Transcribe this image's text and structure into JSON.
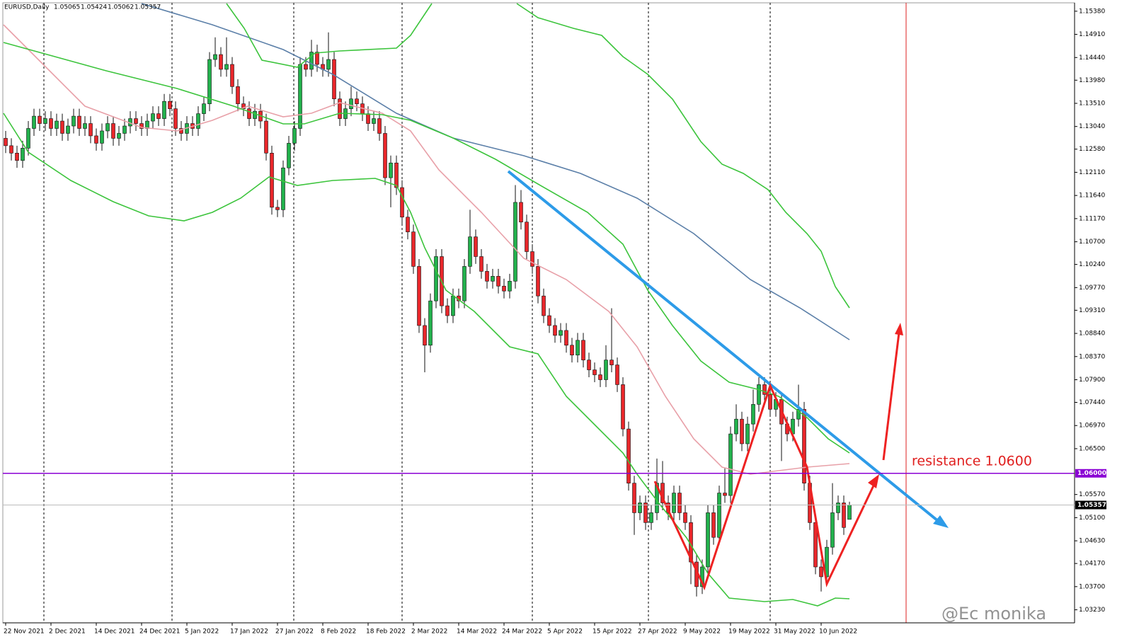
{
  "chart_data": {
    "type": "candlestick",
    "symbol": "EURUSD,Daily",
    "watermark": "@Ec monika",
    "annotation": "resistance 1.0600",
    "up_color": "#22b14c",
    "down_color": "#e8272b",
    "ylim": [
      1.02965,
      1.1555
    ],
    "yticks": [
      {
        "value": 1.1538,
        "label": "1.15380"
      },
      {
        "value": 1.1491,
        "label": "1.14910"
      },
      {
        "value": 1.1444,
        "label": "1.14440"
      },
      {
        "value": 1.1398,
        "label": "1.13980"
      },
      {
        "value": 1.1351,
        "label": "1.13510"
      },
      {
        "value": 1.1304,
        "label": "1.13040"
      },
      {
        "value": 1.1258,
        "label": "1.12580"
      },
      {
        "value": 1.1211,
        "label": "1.12110"
      },
      {
        "value": 1.1164,
        "label": "1.11640"
      },
      {
        "value": 1.1117,
        "label": "1.11170"
      },
      {
        "value": 1.107,
        "label": "1.10700"
      },
      {
        "value": 1.1024,
        "label": "1.10240"
      },
      {
        "value": 1.0977,
        "label": "1.09770"
      },
      {
        "value": 1.0931,
        "label": "1.09310"
      },
      {
        "value": 1.0884,
        "label": "1.08840"
      },
      {
        "value": 1.0837,
        "label": "1.08370"
      },
      {
        "value": 1.079,
        "label": "1.07900"
      },
      {
        "value": 1.0744,
        "label": "1.07440"
      },
      {
        "value": 1.0697,
        "label": "1.06970"
      },
      {
        "value": 1.065,
        "label": "1.06500"
      },
      {
        "value": 1.0557,
        "label": "1.05570"
      },
      {
        "value": 1.051,
        "label": "1.05100"
      },
      {
        "value": 1.0463,
        "label": "1.04630"
      },
      {
        "value": 1.0417,
        "label": "1.04170"
      },
      {
        "value": 1.037,
        "label": "1.03700"
      },
      {
        "value": 1.0323,
        "label": "1.03230"
      }
    ],
    "hline": {
      "value": 1.06,
      "label": "1.06000",
      "color": "#8a00d4"
    },
    "price_label": {
      "value": 1.05357,
      "label": "1.05357"
    },
    "categories": [
      "22 Nov 2021",
      null,
      null,
      null,
      null,
      null,
      null,
      null,
      "2 Dec 2021",
      null,
      null,
      null,
      null,
      null,
      null,
      null,
      "14 Dec 2021",
      null,
      null,
      null,
      null,
      null,
      null,
      null,
      "24 Dec 2021",
      null,
      null,
      null,
      null,
      null,
      null,
      null,
      "5 Jan 2022",
      null,
      null,
      null,
      null,
      null,
      null,
      null,
      "17 Jan 2022",
      null,
      null,
      null,
      null,
      null,
      null,
      null,
      "27 Jan 2022",
      null,
      null,
      null,
      null,
      null,
      null,
      null,
      "8 Feb 2022",
      null,
      null,
      null,
      null,
      null,
      null,
      null,
      "18 Feb 2022",
      null,
      null,
      null,
      null,
      null,
      null,
      null,
      "2 Mar 2022",
      null,
      null,
      null,
      null,
      null,
      null,
      null,
      "14 Mar 2022",
      null,
      null,
      null,
      null,
      null,
      null,
      null,
      "24 Mar 2022",
      null,
      null,
      null,
      null,
      null,
      null,
      null,
      "5 Apr 2022",
      null,
      null,
      null,
      null,
      null,
      null,
      null,
      "15 Apr 2022",
      null,
      null,
      null,
      null,
      null,
      null,
      null,
      "27 Apr 2022",
      null,
      null,
      null,
      null,
      null,
      null,
      null,
      "9 May 2022",
      null,
      null,
      null,
      null,
      null,
      null,
      null,
      "19 May 2022",
      null,
      null,
      null,
      null,
      null,
      null,
      null,
      "31 May 2022",
      null,
      null,
      null,
      null,
      null,
      null,
      null,
      "10 Jun 2022",
      null,
      null,
      null,
      null,
      null
    ],
    "ohlc": [
      [
        1.128,
        1.1295,
        1.125,
        1.1265
      ],
      [
        1.1265,
        1.128,
        1.1235,
        1.125
      ],
      [
        1.125,
        1.1265,
        1.122,
        1.1235
      ],
      [
        1.1235,
        1.1275,
        1.122,
        1.126
      ],
      [
        1.126,
        1.1315,
        1.1245,
        1.13
      ],
      [
        1.13,
        1.134,
        1.1285,
        1.1325
      ],
      [
        1.1325,
        1.134,
        1.1295,
        1.131
      ],
      [
        1.131,
        1.1335,
        1.1295,
        1.132
      ],
      [
        1.132,
        1.1335,
        1.1285,
        1.13
      ],
      [
        1.13,
        1.133,
        1.1285,
        1.1315
      ],
      [
        1.1315,
        1.133,
        1.1275,
        1.129
      ],
      [
        1.129,
        1.132,
        1.1275,
        1.1305
      ],
      [
        1.1305,
        1.134,
        1.129,
        1.1325
      ],
      [
        1.1325,
        1.134,
        1.1285,
        1.13
      ],
      [
        1.13,
        1.1325,
        1.1285,
        1.131
      ],
      [
        1.131,
        1.1325,
        1.127,
        1.1285
      ],
      [
        1.1285,
        1.13,
        1.1255,
        1.127
      ],
      [
        1.127,
        1.131,
        1.1255,
        1.1295
      ],
      [
        1.1295,
        1.1325,
        1.128,
        1.131
      ],
      [
        1.131,
        1.1325,
        1.1265,
        1.128
      ],
      [
        1.128,
        1.1305,
        1.1265,
        1.129
      ],
      [
        1.129,
        1.132,
        1.1275,
        1.1305
      ],
      [
        1.1305,
        1.1335,
        1.129,
        1.132
      ],
      [
        1.132,
        1.1335,
        1.1295,
        1.131
      ],
      [
        1.131,
        1.1325,
        1.1285,
        1.13
      ],
      [
        1.13,
        1.133,
        1.1285,
        1.1315
      ],
      [
        1.1315,
        1.1345,
        1.13,
        1.133
      ],
      [
        1.133,
        1.1345,
        1.1305,
        1.132
      ],
      [
        1.132,
        1.137,
        1.1305,
        1.1355
      ],
      [
        1.1355,
        1.137,
        1.1325,
        1.134
      ],
      [
        1.134,
        1.1355,
        1.1285,
        1.13
      ],
      [
        1.13,
        1.1315,
        1.1275,
        1.129
      ],
      [
        1.129,
        1.1325,
        1.1275,
        1.131
      ],
      [
        1.131,
        1.1325,
        1.1285,
        1.13
      ],
      [
        1.13,
        1.1345,
        1.1285,
        1.133
      ],
      [
        1.133,
        1.1365,
        1.1315,
        1.135
      ],
      [
        1.135,
        1.1455,
        1.1335,
        1.144
      ],
      [
        1.144,
        1.1485,
        1.1425,
        1.145
      ],
      [
        1.145,
        1.1465,
        1.1405,
        1.142
      ],
      [
        1.142,
        1.1485,
        1.1405,
        1.143
      ],
      [
        1.143,
        1.1445,
        1.137,
        1.1385
      ],
      [
        1.1385,
        1.14,
        1.1335,
        1.135
      ],
      [
        1.135,
        1.1365,
        1.1325,
        1.134
      ],
      [
        1.134,
        1.1355,
        1.1305,
        1.132
      ],
      [
        1.132,
        1.135,
        1.1305,
        1.1335
      ],
      [
        1.1335,
        1.135,
        1.13,
        1.1315
      ],
      [
        1.1315,
        1.133,
        1.1235,
        1.125
      ],
      [
        1.125,
        1.1265,
        1.1125,
        1.114
      ],
      [
        1.114,
        1.1155,
        1.112,
        1.1135
      ],
      [
        1.1135,
        1.1235,
        1.112,
        1.122
      ],
      [
        1.122,
        1.1285,
        1.1205,
        1.127
      ],
      [
        1.127,
        1.1315,
        1.1255,
        1.13
      ],
      [
        1.13,
        1.1445,
        1.1285,
        1.143
      ],
      [
        1.143,
        1.1445,
        1.1405,
        1.142
      ],
      [
        1.142,
        1.148,
        1.1405,
        1.1455
      ],
      [
        1.1455,
        1.147,
        1.1415,
        1.143
      ],
      [
        1.143,
        1.1445,
        1.1405,
        1.142
      ],
      [
        1.142,
        1.1495,
        1.1405,
        1.144
      ],
      [
        1.144,
        1.1455,
        1.1345,
        1.136
      ],
      [
        1.136,
        1.1375,
        1.1305,
        1.132
      ],
      [
        1.132,
        1.1355,
        1.1305,
        1.134
      ],
      [
        1.134,
        1.1385,
        1.1325,
        1.136
      ],
      [
        1.136,
        1.1375,
        1.1335,
        1.135
      ],
      [
        1.135,
        1.1365,
        1.1315,
        1.133
      ],
      [
        1.133,
        1.1345,
        1.1295,
        1.131
      ],
      [
        1.131,
        1.1335,
        1.1295,
        1.132
      ],
      [
        1.132,
        1.1335,
        1.1275,
        1.129
      ],
      [
        1.129,
        1.1305,
        1.1185,
        1.12
      ],
      [
        1.12,
        1.1245,
        1.114,
        1.123
      ],
      [
        1.123,
        1.1245,
        1.1165,
        1.118
      ],
      [
        1.118,
        1.1195,
        1.1105,
        1.112
      ],
      [
        1.112,
        1.1135,
        1.1075,
        1.109
      ],
      [
        1.109,
        1.1105,
        1.1005,
        1.102
      ],
      [
        1.102,
        1.1035,
        1.0885,
        1.09
      ],
      [
        1.09,
        1.0915,
        1.0805,
        1.086
      ],
      [
        1.086,
        1.0965,
        1.0845,
        1.095
      ],
      [
        1.095,
        1.1055,
        1.0935,
        1.104
      ],
      [
        1.104,
        1.1055,
        1.0925,
        1.094
      ],
      [
        1.094,
        1.0955,
        1.0905,
        1.092
      ],
      [
        1.092,
        1.0975,
        1.0905,
        1.096
      ],
      [
        1.096,
        1.0975,
        1.0935,
        1.095
      ],
      [
        1.095,
        1.1035,
        1.0935,
        1.102
      ],
      [
        1.102,
        1.1135,
        1.1005,
        1.108
      ],
      [
        1.108,
        1.1095,
        1.1025,
        1.104
      ],
      [
        1.104,
        1.1055,
        1.0995,
        1.101
      ],
      [
        1.101,
        1.1025,
        1.0975,
        1.099
      ],
      [
        1.099,
        1.1015,
        1.0975,
        1.1
      ],
      [
        1.1,
        1.1015,
        1.0965,
        1.098
      ],
      [
        1.098,
        1.0995,
        1.0955,
        1.097
      ],
      [
        1.097,
        1.1005,
        1.0955,
        1.099
      ],
      [
        1.099,
        1.1185,
        1.0975,
        1.115
      ],
      [
        1.115,
        1.1175,
        1.1095,
        1.111
      ],
      [
        1.111,
        1.1125,
        1.1035,
        1.105
      ],
      [
        1.105,
        1.1065,
        1.1005,
        1.102
      ],
      [
        1.102,
        1.1035,
        1.0945,
        1.096
      ],
      [
        1.096,
        1.0975,
        1.0905,
        1.092
      ],
      [
        1.092,
        1.0935,
        1.0885,
        1.09
      ],
      [
        1.09,
        1.0915,
        1.0865,
        1.088
      ],
      [
        1.088,
        1.0905,
        1.0865,
        1.089
      ],
      [
        1.089,
        1.0905,
        1.0845,
        1.086
      ],
      [
        1.086,
        1.0875,
        1.0825,
        1.084
      ],
      [
        1.084,
        1.0885,
        1.0825,
        1.087
      ],
      [
        1.087,
        1.0885,
        1.0815,
        1.083
      ],
      [
        1.083,
        1.0845,
        1.0795,
        1.081
      ],
      [
        1.081,
        1.0825,
        1.0785,
        1.08
      ],
      [
        1.08,
        1.0815,
        1.0775,
        1.079
      ],
      [
        1.079,
        1.086,
        1.0775,
        1.083
      ],
      [
        1.083,
        1.0935,
        1.0805,
        1.082
      ],
      [
        1.082,
        1.0835,
        1.0765,
        1.078
      ],
      [
        1.078,
        1.0795,
        1.0675,
        1.069
      ],
      [
        1.069,
        1.0705,
        1.0565,
        1.058
      ],
      [
        1.058,
        1.0595,
        1.0475,
        1.052
      ],
      [
        1.052,
        1.0555,
        1.0505,
        1.054
      ],
      [
        1.054,
        1.0555,
        1.0485,
        1.05
      ],
      [
        1.05,
        1.0535,
        1.0485,
        1.052
      ],
      [
        1.052,
        1.063,
        1.0505,
        1.058
      ],
      [
        1.058,
        1.0625,
        1.0525,
        1.054
      ],
      [
        1.054,
        1.0555,
        1.0505,
        1.052
      ],
      [
        1.052,
        1.0575,
        1.0505,
        1.056
      ],
      [
        1.056,
        1.0575,
        1.0505,
        1.052
      ],
      [
        1.052,
        1.0535,
        1.0485,
        1.05
      ],
      [
        1.05,
        1.0515,
        1.0375,
        1.042
      ],
      [
        1.042,
        1.0435,
        1.035,
        1.037
      ],
      [
        1.037,
        1.0425,
        1.0355,
        1.041
      ],
      [
        1.041,
        1.0535,
        1.0395,
        1.052
      ],
      [
        1.052,
        1.0535,
        1.0455,
        1.047
      ],
      [
        1.047,
        1.0575,
        1.0455,
        1.056
      ],
      [
        1.056,
        1.061,
        1.054,
        1.0555
      ],
      [
        1.0555,
        1.0695,
        1.054,
        1.068
      ],
      [
        1.068,
        1.074,
        1.0665,
        1.071
      ],
      [
        1.071,
        1.0725,
        1.0645,
        1.066
      ],
      [
        1.066,
        1.0715,
        1.0645,
        1.07
      ],
      [
        1.07,
        1.077,
        1.0685,
        1.074
      ],
      [
        1.074,
        1.0795,
        1.0725,
        1.078
      ],
      [
        1.078,
        1.0795,
        1.0745,
        1.076
      ],
      [
        1.076,
        1.0775,
        1.0715,
        1.073
      ],
      [
        1.073,
        1.0765,
        1.0715,
        1.075
      ],
      [
        1.075,
        1.0765,
        1.0625,
        1.07
      ],
      [
        1.07,
        1.0715,
        1.0665,
        1.068
      ],
      [
        1.068,
        1.0725,
        1.0665,
        1.071
      ],
      [
        1.071,
        1.078,
        1.0695,
        1.073
      ],
      [
        1.073,
        1.0745,
        1.0565,
        1.058
      ],
      [
        1.058,
        1.0595,
        1.0485,
        1.05
      ],
      [
        1.05,
        1.0515,
        1.0395,
        1.041
      ],
      [
        1.041,
        1.0425,
        1.036,
        1.039
      ],
      [
        1.039,
        1.0465,
        1.0375,
        1.045
      ],
      [
        1.045,
        1.058,
        1.0435,
        1.052
      ],
      [
        1.052,
        1.0555,
        1.0505,
        1.054
      ],
      [
        1.054,
        1.0555,
        1.0475,
        1.049
      ],
      [
        1.05065,
        1.05424,
        1.05062,
        1.05357
      ]
    ]
  }
}
